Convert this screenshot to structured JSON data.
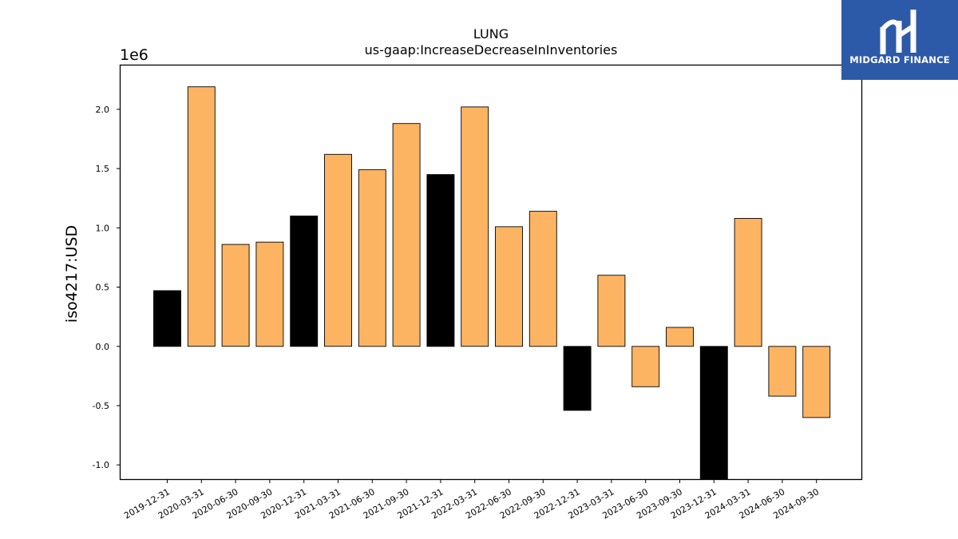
{
  "chart_data": {
    "type": "bar",
    "title": "LUNG",
    "subtitle": "us-gaap:IncreaseDecreaseInInventories",
    "ylabel": "iso4217:USD",
    "y_offset_label": "1e6",
    "y_scale": 1000000,
    "ylim": [
      -1120000,
      2370000
    ],
    "yticks": [
      -1.0,
      -0.5,
      0.0,
      0.5,
      1.0,
      1.5,
      2.0
    ],
    "grid": false,
    "categories": [
      "2019-12-31",
      "2020-03-31",
      "2020-06-30",
      "2020-09-30",
      "2020-12-31",
      "2021-03-31",
      "2021-06-30",
      "2021-09-30",
      "2021-12-31",
      "2022-03-31",
      "2022-06-30",
      "2022-09-30",
      "2022-12-31",
      "2023-03-31",
      "2023-06-30",
      "2023-09-30",
      "2023-12-31",
      "2024-03-31",
      "2024-06-30",
      "2024-09-30"
    ],
    "values": [
      470000,
      2190000,
      860000,
      880000,
      1100000,
      1620000,
      1490000,
      1880000,
      1450000,
      2020000,
      1010000,
      1140000,
      -540000,
      600000,
      -340000,
      160000,
      -1180000,
      1080000,
      -420000,
      -600000
    ],
    "fiscal_year_end": [
      true,
      false,
      false,
      false,
      true,
      false,
      false,
      false,
      true,
      false,
      false,
      false,
      true,
      false,
      false,
      false,
      true,
      false,
      false,
      false
    ],
    "colors": {
      "quarter": "#fdb462",
      "year_end": "#000000",
      "edge": "#000000"
    }
  },
  "logo": {
    "text": "MIDGARD FINANCE",
    "background": "#2d5aa8"
  }
}
